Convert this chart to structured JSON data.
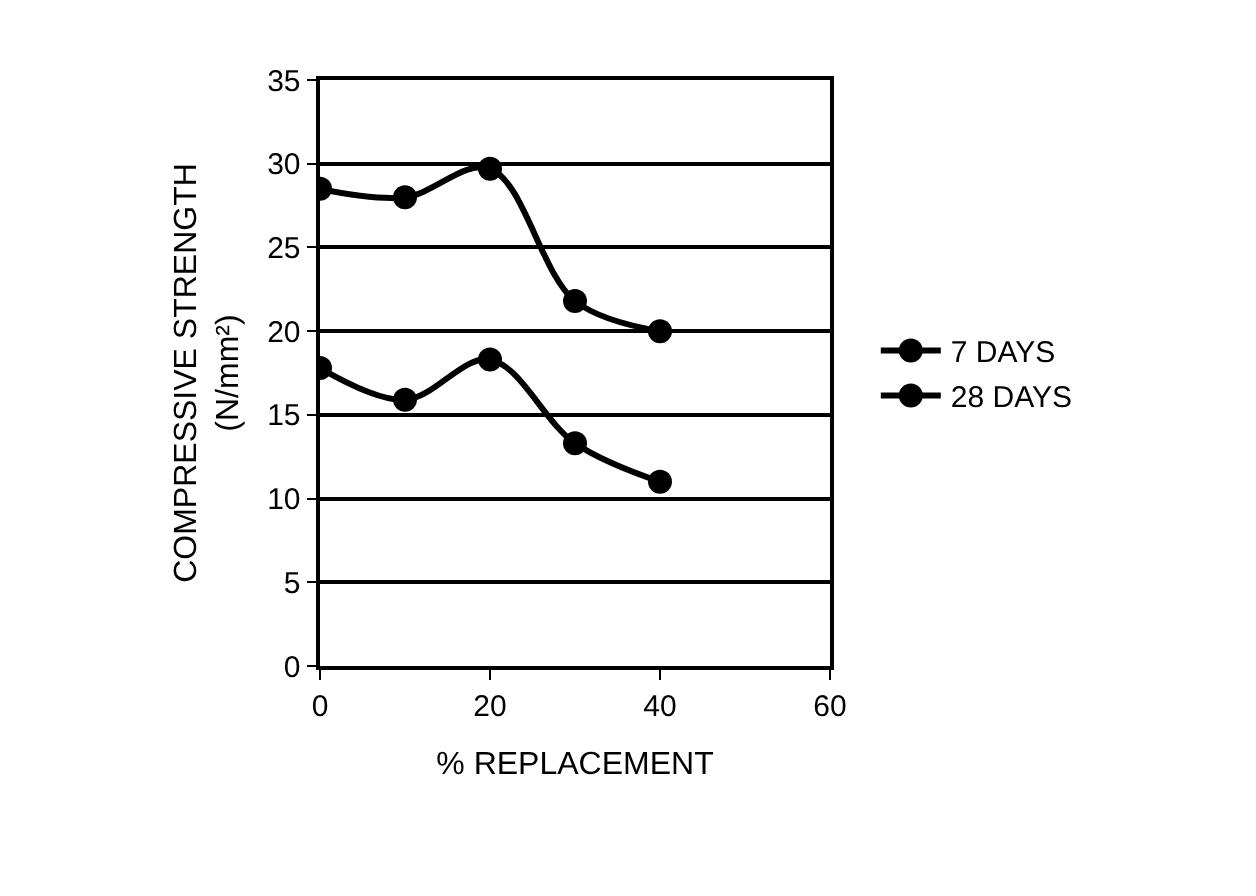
{
  "chart_data": {
    "type": "line",
    "xlabel": "% REPLACEMENT",
    "ylabel": "COMPRESSIVE STRENGTH\n(N/mm²)",
    "x": [
      0,
      10,
      20,
      30,
      40
    ],
    "series": [
      {
        "name": "7 DAYS",
        "color": "#000000",
        "values": [
          17.8,
          15.9,
          18.3,
          13.3,
          11.0
        ]
      },
      {
        "name": "28 DAYS",
        "color": "#000000",
        "values": [
          28.5,
          28.0,
          29.7,
          21.8,
          20.0
        ]
      }
    ],
    "xlim": [
      0,
      60
    ],
    "xticks": [
      0,
      20,
      40,
      60
    ],
    "ylim": [
      0,
      35
    ],
    "yticks": [
      0,
      5,
      10,
      15,
      20,
      25,
      30,
      35
    ],
    "grid": "y",
    "legend": "right",
    "marker": "circle",
    "line_style": "solid"
  }
}
